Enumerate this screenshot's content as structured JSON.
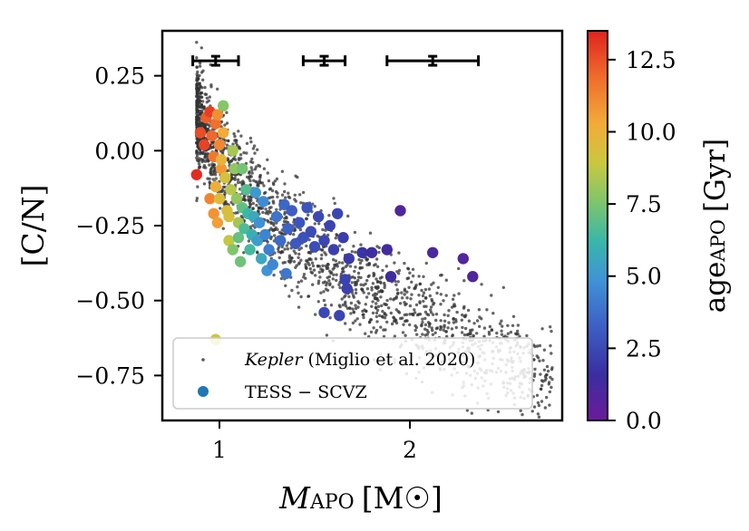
{
  "chart_data": {
    "type": "scatter",
    "title": "",
    "xlabel": {
      "main": "M",
      "sub": "APO",
      "unit": "[M☉]"
    },
    "ylabel": "[C/N]",
    "xlim": [
      0.7,
      2.8
    ],
    "ylim": [
      -0.9,
      0.4
    ],
    "xticks": [
      1,
      2
    ],
    "xtick_labels": [
      "1",
      "2"
    ],
    "yticks": [
      0.25,
      0.0,
      -0.25,
      -0.5,
      -0.75
    ],
    "ytick_labels": [
      "0.25",
      "0.00",
      "−0.25",
      "−0.50",
      "−0.75"
    ],
    "grid": false,
    "legend_position": "bottom-left",
    "colorbar": {
      "label": {
        "main": "age",
        "sub": "APO",
        "unit": "[Gyr]"
      },
      "range": [
        0.0,
        13.5
      ],
      "ticks": [
        0.0,
        2.5,
        5.0,
        7.5,
        10.0,
        12.5
      ],
      "tick_labels": [
        "0.0",
        "2.5",
        "5.0",
        "7.5",
        "10.0",
        "12.5"
      ],
      "colormap": "rainbow"
    },
    "error_bars": [
      {
        "x": 0.98,
        "y": 0.3,
        "xerr": 0.12,
        "yerr": 0.015
      },
      {
        "x": 1.55,
        "y": 0.3,
        "xerr": 0.11,
        "yerr": 0.015
      },
      {
        "x": 2.12,
        "y": 0.3,
        "xerr": 0.24,
        "yerr": 0.015
      }
    ],
    "series": [
      {
        "name": "Kepler (Miglio et al. 2020)",
        "name_italic": "Kepler",
        "name_rest": " (Miglio et al. 2020)",
        "style": "small black dots",
        "color": "#333333",
        "trend": {
          "x_range": [
            0.88,
            2.75
          ],
          "relation": "[C/N] ≈ 0.26 − 0.75·√(M − 0.85)",
          "spread": 0.085
        }
      },
      {
        "name": "TESS − SCVZ",
        "style": "large dots colored by age",
        "legend_color": "#1f77b4",
        "points": [
          [
            0.88,
            -0.08,
            13.3
          ],
          [
            0.9,
            0.06,
            12.6
          ],
          [
            0.92,
            0.02,
            12.8
          ],
          [
            0.93,
            0.11,
            12.2
          ],
          [
            0.95,
            0.13,
            12.9
          ],
          [
            0.96,
            0.05,
            12.0
          ],
          [
            0.97,
            -0.02,
            11.6
          ],
          [
            0.98,
            0.09,
            11.8
          ],
          [
            0.99,
            0.12,
            11.0
          ],
          [
            1.0,
            0.02,
            11.2
          ],
          [
            1.01,
            -0.06,
            10.8
          ],
          [
            1.02,
            0.06,
            10.3
          ],
          [
            0.95,
            -0.16,
            11.3
          ],
          [
            0.97,
            -0.21,
            10.9
          ],
          [
            0.99,
            -0.24,
            10.6
          ],
          [
            0.98,
            -0.12,
            10.1
          ],
          [
            1.0,
            -0.16,
            9.6
          ],
          [
            1.01,
            -0.03,
            9.9
          ],
          [
            1.03,
            -0.09,
            9.2
          ],
          [
            1.04,
            -0.2,
            9.5
          ],
          [
            1.05,
            -0.22,
            9.3
          ],
          [
            1.06,
            -0.13,
            8.6
          ],
          [
            1.07,
            0.0,
            8.3
          ],
          [
            1.02,
            0.15,
            7.7
          ],
          [
            1.08,
            -0.06,
            7.9
          ],
          [
            1.09,
            -0.16,
            8.0
          ],
          [
            1.1,
            -0.24,
            8.2
          ],
          [
            1.05,
            -0.3,
            8.8
          ],
          [
            1.07,
            -0.33,
            7.6
          ],
          [
            1.1,
            -0.29,
            7.1
          ],
          [
            1.12,
            -0.19,
            7.0
          ],
          [
            1.13,
            -0.26,
            6.6
          ],
          [
            1.15,
            -0.21,
            6.2
          ],
          [
            1.11,
            -0.37,
            7.3
          ],
          [
            1.16,
            -0.33,
            6.4
          ],
          [
            1.17,
            -0.28,
            5.9
          ],
          [
            1.18,
            -0.22,
            5.7
          ],
          [
            1.2,
            -0.3,
            5.2
          ],
          [
            1.22,
            -0.36,
            5.6
          ],
          [
            1.14,
            -0.13,
            6.8
          ],
          [
            1.12,
            -0.06,
            7.4
          ],
          [
            1.19,
            -0.14,
            5.1
          ],
          [
            1.21,
            -0.24,
            4.8
          ],
          [
            1.23,
            -0.17,
            4.6
          ],
          [
            1.24,
            -0.28,
            4.4
          ],
          [
            1.26,
            -0.33,
            4.2
          ],
          [
            1.25,
            -0.4,
            4.9
          ],
          [
            1.28,
            -0.38,
            4.5
          ],
          [
            1.3,
            -0.22,
            3.9
          ],
          [
            1.32,
            -0.3,
            3.6
          ],
          [
            1.34,
            -0.18,
            3.5
          ],
          [
            1.36,
            -0.26,
            3.3
          ],
          [
            1.38,
            -0.2,
            3.2
          ],
          [
            1.35,
            -0.41,
            4.0
          ],
          [
            1.4,
            -0.31,
            3.0
          ],
          [
            1.42,
            -0.24,
            2.9
          ],
          [
            1.44,
            -0.29,
            2.8
          ],
          [
            1.46,
            -0.19,
            2.9
          ],
          [
            1.48,
            -0.27,
            2.6
          ],
          [
            1.5,
            -0.32,
            2.7
          ],
          [
            1.52,
            -0.22,
            2.5
          ],
          [
            1.55,
            -0.3,
            2.4
          ],
          [
            1.58,
            -0.25,
            2.3
          ],
          [
            1.6,
            -0.33,
            2.2
          ],
          [
            1.62,
            -0.21,
            2.4
          ],
          [
            1.65,
            -0.29,
            2.1
          ],
          [
            1.68,
            -0.36,
            2.0
          ],
          [
            1.66,
            -0.43,
            2.3
          ],
          [
            1.67,
            -0.46,
            2.2
          ],
          [
            1.55,
            -0.54,
            2.5
          ],
          [
            1.63,
            -0.55,
            2.4
          ],
          [
            1.75,
            -0.34,
            1.8
          ],
          [
            1.8,
            -0.34,
            1.5
          ],
          [
            1.88,
            -0.33,
            1.3
          ],
          [
            1.95,
            -0.2,
            0.9
          ],
          [
            1.9,
            -0.42,
            1.4
          ],
          [
            2.12,
            -0.34,
            1.1
          ],
          [
            2.28,
            -0.36,
            0.8
          ],
          [
            2.33,
            -0.42,
            0.9
          ],
          [
            0.98,
            -0.63,
            9.0
          ]
        ]
      }
    ]
  }
}
